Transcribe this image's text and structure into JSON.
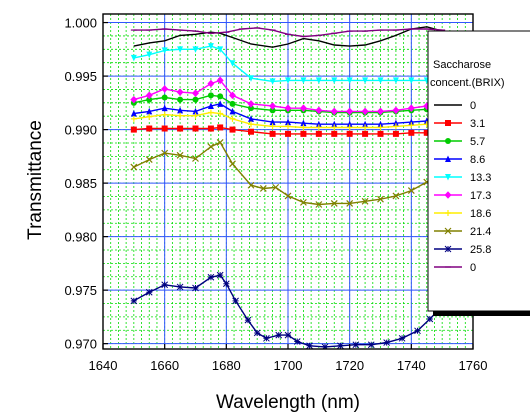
{
  "chart_data": {
    "type": "line",
    "xlabel": "Wavelength (nm)",
    "ylabel": "Transmittance",
    "xlim": [
      1640,
      1760
    ],
    "ylim": [
      0.9695,
      1.0008
    ],
    "x_ticks": [
      1640,
      1660,
      1680,
      1700,
      1720,
      1740,
      1760
    ],
    "x_tick_labels": [
      "1640",
      "1660",
      "1680",
      "1700",
      "1720",
      "1740",
      "1760"
    ],
    "y_ticks": [
      0.97,
      0.975,
      0.98,
      0.985,
      0.99,
      0.995,
      1.0
    ],
    "y_tick_labels": [
      "0.970",
      "0.975",
      "0.980",
      "0.985",
      "0.990",
      "0.995",
      "1.000"
    ],
    "grid": true,
    "legend_placement": "right",
    "legend_title": [
      "Saccharose",
      "concent.(BRIX)"
    ],
    "series": [
      {
        "name": "0",
        "color": "#000000",
        "marker": "none",
        "points": [
          [
            1650,
            0.9978
          ],
          [
            1655,
            0.9981
          ],
          [
            1660,
            0.9983
          ],
          [
            1665,
            0.9988
          ],
          [
            1670,
            0.9989
          ],
          [
            1675,
            0.9991
          ],
          [
            1678,
            0.999
          ],
          [
            1682,
            0.9986
          ],
          [
            1688,
            0.998
          ],
          [
            1695,
            0.9977
          ],
          [
            1700,
            0.998
          ],
          [
            1705,
            0.9985
          ],
          [
            1710,
            0.9983
          ],
          [
            1715,
            0.9979
          ],
          [
            1720,
            0.9978
          ],
          [
            1725,
            0.9979
          ],
          [
            1730,
            0.9983
          ],
          [
            1735,
            0.9988
          ],
          [
            1740,
            0.9994
          ],
          [
            1745,
            0.9996
          ],
          [
            1750,
            0.9992
          ]
        ]
      },
      {
        "name": "3.1",
        "color": "#ff0000",
        "marker": "square",
        "points": [
          [
            1650,
            0.99
          ],
          [
            1655,
            0.9901
          ],
          [
            1660,
            0.9901
          ],
          [
            1665,
            0.9901
          ],
          [
            1670,
            0.9901
          ],
          [
            1675,
            0.9901
          ],
          [
            1678,
            0.9902
          ],
          [
            1682,
            0.99
          ],
          [
            1688,
            0.9898
          ],
          [
            1695,
            0.9896
          ],
          [
            1700,
            0.9896
          ],
          [
            1705,
            0.9896
          ],
          [
            1710,
            0.9896
          ],
          [
            1715,
            0.9896
          ],
          [
            1720,
            0.9896
          ],
          [
            1725,
            0.9896
          ],
          [
            1730,
            0.9896
          ],
          [
            1735,
            0.9896
          ],
          [
            1740,
            0.9897
          ],
          [
            1745,
            0.9897
          ],
          [
            1750,
            0.9897
          ]
        ]
      },
      {
        "name": "5.7",
        "color": "#00cc00",
        "marker": "circle",
        "points": [
          [
            1650,
            0.9925
          ],
          [
            1655,
            0.9928
          ],
          [
            1660,
            0.993
          ],
          [
            1665,
            0.9928
          ],
          [
            1670,
            0.9928
          ],
          [
            1675,
            0.9932
          ],
          [
            1678,
            0.9931
          ],
          [
            1682,
            0.9924
          ],
          [
            1688,
            0.992
          ],
          [
            1695,
            0.9918
          ],
          [
            1700,
            0.9918
          ],
          [
            1705,
            0.9918
          ],
          [
            1710,
            0.9917
          ],
          [
            1715,
            0.9916
          ],
          [
            1720,
            0.9916
          ],
          [
            1725,
            0.9916
          ],
          [
            1730,
            0.9916
          ],
          [
            1735,
            0.9917
          ],
          [
            1740,
            0.9918
          ],
          [
            1745,
            0.9919
          ],
          [
            1750,
            0.992
          ]
        ]
      },
      {
        "name": "8.6",
        "color": "#0000ff",
        "marker": "triangle-up",
        "points": [
          [
            1650,
            0.9915
          ],
          [
            1655,
            0.9917
          ],
          [
            1660,
            0.992
          ],
          [
            1665,
            0.9918
          ],
          [
            1670,
            0.9917
          ],
          [
            1675,
            0.9922
          ],
          [
            1678,
            0.9924
          ],
          [
            1682,
            0.9917
          ],
          [
            1688,
            0.991
          ],
          [
            1695,
            0.9907
          ],
          [
            1700,
            0.9907
          ],
          [
            1705,
            0.9906
          ],
          [
            1710,
            0.9905
          ],
          [
            1715,
            0.9905
          ],
          [
            1720,
            0.9905
          ],
          [
            1725,
            0.9905
          ],
          [
            1730,
            0.9905
          ],
          [
            1735,
            0.9906
          ],
          [
            1740,
            0.9907
          ],
          [
            1745,
            0.9908
          ],
          [
            1750,
            0.991
          ]
        ]
      },
      {
        "name": "13.3",
        "color": "#00ffff",
        "marker": "triangle-down",
        "points": [
          [
            1650,
            0.9967
          ],
          [
            1655,
            0.997
          ],
          [
            1660,
            0.9974
          ],
          [
            1665,
            0.9975
          ],
          [
            1670,
            0.9975
          ],
          [
            1675,
            0.9978
          ],
          [
            1678,
            0.9975
          ],
          [
            1682,
            0.9962
          ],
          [
            1688,
            0.9948
          ],
          [
            1695,
            0.9945
          ],
          [
            1700,
            0.9946
          ],
          [
            1705,
            0.9946
          ],
          [
            1710,
            0.9946
          ],
          [
            1715,
            0.9946
          ],
          [
            1720,
            0.9946
          ],
          [
            1725,
            0.9946
          ],
          [
            1730,
            0.9946
          ],
          [
            1735,
            0.9946
          ],
          [
            1740,
            0.9946
          ],
          [
            1745,
            0.9946
          ],
          [
            1750,
            0.9946
          ]
        ]
      },
      {
        "name": "17.3",
        "color": "#ff00ff",
        "marker": "diamond",
        "points": [
          [
            1650,
            0.9928
          ],
          [
            1655,
            0.9932
          ],
          [
            1660,
            0.9938
          ],
          [
            1665,
            0.9935
          ],
          [
            1670,
            0.9934
          ],
          [
            1675,
            0.9943
          ],
          [
            1678,
            0.9946
          ],
          [
            1682,
            0.9932
          ],
          [
            1688,
            0.9924
          ],
          [
            1695,
            0.9922
          ],
          [
            1700,
            0.992
          ],
          [
            1705,
            0.992
          ],
          [
            1710,
            0.9918
          ],
          [
            1715,
            0.9917
          ],
          [
            1720,
            0.9917
          ],
          [
            1725,
            0.9917
          ],
          [
            1730,
            0.9917
          ],
          [
            1735,
            0.9918
          ],
          [
            1740,
            0.992
          ],
          [
            1745,
            0.9922
          ],
          [
            1750,
            0.9924
          ]
        ]
      },
      {
        "name": "18.6",
        "color": "#ffee00",
        "marker": "plus",
        "points": [
          [
            1650,
            0.991
          ],
          [
            1655,
            0.9912
          ],
          [
            1660,
            0.9914
          ],
          [
            1665,
            0.9913
          ],
          [
            1670,
            0.9913
          ],
          [
            1675,
            0.9916
          ],
          [
            1678,
            0.9915
          ],
          [
            1682,
            0.991
          ],
          [
            1688,
            0.9905
          ],
          [
            1695,
            0.9903
          ],
          [
            1700,
            0.9903
          ],
          [
            1705,
            0.9902
          ],
          [
            1710,
            0.9902
          ],
          [
            1715,
            0.9902
          ],
          [
            1720,
            0.9902
          ],
          [
            1725,
            0.9902
          ],
          [
            1730,
            0.9902
          ],
          [
            1735,
            0.9903
          ],
          [
            1740,
            0.9904
          ],
          [
            1745,
            0.9905
          ],
          [
            1750,
            0.9906
          ]
        ]
      },
      {
        "name": "21.4",
        "color": "#808000",
        "marker": "x",
        "points": [
          [
            1650,
            0.9865
          ],
          [
            1655,
            0.9872
          ],
          [
            1660,
            0.9878
          ],
          [
            1665,
            0.9876
          ],
          [
            1670,
            0.9873
          ],
          [
            1675,
            0.9884
          ],
          [
            1678,
            0.9888
          ],
          [
            1682,
            0.9868
          ],
          [
            1688,
            0.9848
          ],
          [
            1692,
            0.9845
          ],
          [
            1696,
            0.9846
          ],
          [
            1700,
            0.9838
          ],
          [
            1705,
            0.9832
          ],
          [
            1710,
            0.983
          ],
          [
            1715,
            0.9831
          ],
          [
            1720,
            0.9831
          ],
          [
            1725,
            0.9833
          ],
          [
            1730,
            0.9835
          ],
          [
            1735,
            0.9838
          ],
          [
            1740,
            0.9843
          ],
          [
            1745,
            0.9851
          ],
          [
            1750,
            0.9862
          ]
        ]
      },
      {
        "name": "25.8",
        "color": "#000080",
        "marker": "asterisk",
        "points": [
          [
            1650,
            0.974
          ],
          [
            1655,
            0.9748
          ],
          [
            1660,
            0.9755
          ],
          [
            1665,
            0.9753
          ],
          [
            1670,
            0.9752
          ],
          [
            1675,
            0.9762
          ],
          [
            1678,
            0.9764
          ],
          [
            1680,
            0.9756
          ],
          [
            1683,
            0.974
          ],
          [
            1687,
            0.9722
          ],
          [
            1690,
            0.971
          ],
          [
            1693,
            0.9705
          ],
          [
            1697,
            0.9708
          ],
          [
            1700,
            0.9708
          ],
          [
            1703,
            0.9702
          ],
          [
            1707,
            0.9698
          ],
          [
            1712,
            0.9697
          ],
          [
            1717,
            0.9698
          ],
          [
            1722,
            0.9699
          ],
          [
            1727,
            0.9699
          ],
          [
            1732,
            0.9701
          ],
          [
            1737,
            0.9705
          ],
          [
            1742,
            0.9712
          ],
          [
            1746,
            0.9723
          ],
          [
            1750,
            0.9735
          ]
        ]
      },
      {
        "name": "0",
        "color": "#800080",
        "marker": "dash",
        "points": [
          [
            1650,
            0.9993
          ],
          [
            1655,
            0.9993
          ],
          [
            1660,
            0.9994
          ],
          [
            1665,
            0.9993
          ],
          [
            1670,
            0.9992
          ],
          [
            1675,
            0.999
          ],
          [
            1680,
            0.9991
          ],
          [
            1685,
            0.9994
          ],
          [
            1690,
            0.9995
          ],
          [
            1695,
            0.9993
          ],
          [
            1700,
            0.9989
          ],
          [
            1705,
            0.9987
          ],
          [
            1710,
            0.9988
          ],
          [
            1715,
            0.999
          ],
          [
            1720,
            0.9992
          ],
          [
            1725,
            0.9992
          ],
          [
            1730,
            0.9993
          ],
          [
            1735,
            0.9993
          ],
          [
            1740,
            0.9994
          ],
          [
            1745,
            0.9994
          ],
          [
            1750,
            0.9993
          ]
        ]
      }
    ]
  }
}
